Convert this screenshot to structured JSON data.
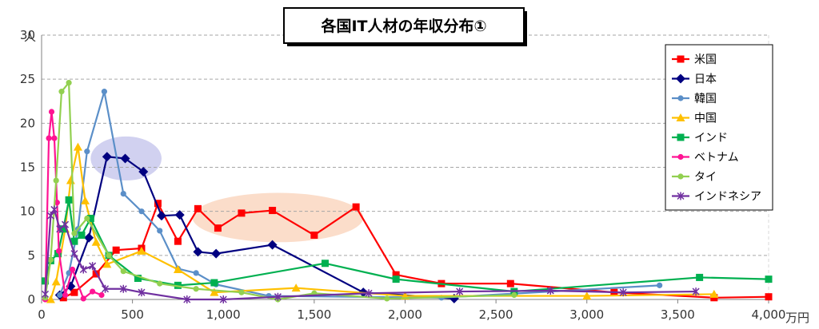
{
  "chart_data": {
    "type": "line",
    "title": "各国IT人材の年収分布①",
    "ylabel": "人",
    "xlabel": "万円",
    "xlim": [
      0,
      4000
    ],
    "ylim": [
      0,
      30
    ],
    "x_ticks": [
      "0",
      "500",
      "1,000",
      "1,500",
      "2,000",
      "2,500",
      "3,000",
      "3,500",
      "4,000"
    ],
    "y_ticks": [
      "0",
      "5",
      "10",
      "15",
      "20",
      "25",
      "30"
    ],
    "grid": "horizontal-dashed",
    "legend_position": "right",
    "series": [
      {
        "name": "米国",
        "color": "#ff0000",
        "marker": "square",
        "points": [
          [
            120,
            0.2
          ],
          [
            180,
            0.8
          ],
          [
            300,
            2.9
          ],
          [
            410,
            5.6
          ],
          [
            550,
            5.8
          ],
          [
            640,
            10.9
          ],
          [
            750,
            6.6
          ],
          [
            860,
            10.3
          ],
          [
            970,
            8.1
          ],
          [
            1100,
            9.8
          ],
          [
            1270,
            10.1
          ],
          [
            1500,
            7.3
          ],
          [
            1730,
            10.5
          ],
          [
            1950,
            2.8
          ],
          [
            2200,
            1.8
          ],
          [
            2580,
            1.8
          ],
          [
            3150,
            0.8
          ],
          [
            3700,
            0.2
          ],
          [
            4000,
            0.3
          ]
        ]
      },
      {
        "name": "日本",
        "color": "#000080",
        "marker": "diamond",
        "points": [
          [
            100,
            0.5
          ],
          [
            160,
            1.5
          ],
          [
            260,
            7.0
          ],
          [
            360,
            16.2
          ],
          [
            460,
            16.0
          ],
          [
            560,
            14.5
          ],
          [
            660,
            9.5
          ],
          [
            760,
            9.6
          ],
          [
            860,
            5.4
          ],
          [
            960,
            5.2
          ],
          [
            1270,
            6.2
          ],
          [
            1770,
            0.8
          ],
          [
            2270,
            0.1
          ]
        ]
      },
      {
        "name": "韓国",
        "color": "#5b8fc8",
        "marker": "circle",
        "points": [
          [
            100,
            0.5
          ],
          [
            150,
            3.0
          ],
          [
            200,
            8.0
          ],
          [
            250,
            16.8
          ],
          [
            345,
            23.6
          ],
          [
            450,
            12.0
          ],
          [
            550,
            10.0
          ],
          [
            650,
            7.8
          ],
          [
            750,
            3.5
          ],
          [
            850,
            3.0
          ],
          [
            960,
            1.7
          ],
          [
            1250,
            0.4
          ],
          [
            2200,
            0.2
          ],
          [
            3400,
            1.6
          ]
        ]
      },
      {
        "name": "中国",
        "color": "#ffc000",
        "marker": "triangle",
        "points": [
          [
            50,
            0.0
          ],
          [
            80,
            2.0
          ],
          [
            130,
            8.0
          ],
          [
            160,
            13.5
          ],
          [
            200,
            17.3
          ],
          [
            240,
            11.2
          ],
          [
            300,
            6.5
          ],
          [
            360,
            4.0
          ],
          [
            550,
            5.5
          ],
          [
            750,
            3.4
          ],
          [
            950,
            0.8
          ],
          [
            1400,
            1.3
          ],
          [
            2000,
            0.4
          ],
          [
            3000,
            0.4
          ],
          [
            3700,
            0.6
          ]
        ]
      },
      {
        "name": "インド",
        "color": "#00b050",
        "marker": "square",
        "points": [
          [
            20,
            2.1
          ],
          [
            50,
            4.4
          ],
          [
            90,
            5.2
          ],
          [
            120,
            8.0
          ],
          [
            150,
            11.3
          ],
          [
            180,
            6.6
          ],
          [
            220,
            7.3
          ],
          [
            270,
            9.2
          ],
          [
            370,
            5.0
          ],
          [
            530,
            2.4
          ],
          [
            750,
            1.6
          ],
          [
            950,
            1.9
          ],
          [
            1560,
            4.1
          ],
          [
            1950,
            2.3
          ],
          [
            2600,
            0.9
          ],
          [
            3620,
            2.5
          ],
          [
            4000,
            2.3
          ]
        ]
      },
      {
        "name": "ベトナム",
        "color": "#ff1493",
        "marker": "circle",
        "points": [
          [
            20,
            0.0
          ],
          [
            40,
            18.3
          ],
          [
            55,
            21.3
          ],
          [
            70,
            18.3
          ],
          [
            85,
            11.0
          ],
          [
            95,
            5.5
          ],
          [
            130,
            0.5
          ],
          [
            170,
            3.4
          ],
          [
            230,
            0.1
          ],
          [
            280,
            0.9
          ],
          [
            330,
            0.5
          ]
        ]
      },
      {
        "name": "タイ",
        "color": "#92d050",
        "marker": "circle",
        "points": [
          [
            20,
            0.2
          ],
          [
            50,
            4.5
          ],
          [
            80,
            13.5
          ],
          [
            110,
            23.6
          ],
          [
            150,
            24.6
          ],
          [
            180,
            7.5
          ],
          [
            250,
            9.2
          ],
          [
            370,
            5.0
          ],
          [
            450,
            3.2
          ],
          [
            650,
            1.8
          ],
          [
            850,
            1.2
          ],
          [
            1100,
            0.8
          ],
          [
            1300,
            0.0
          ],
          [
            1500,
            0.7
          ],
          [
            1900,
            0.1
          ],
          [
            2600,
            0.5
          ]
        ]
      },
      {
        "name": "インドネシア",
        "color": "#7030a0",
        "marker": "star",
        "points": [
          [
            20,
            0.6
          ],
          [
            50,
            9.5
          ],
          [
            70,
            10.2
          ],
          [
            100,
            8.0
          ],
          [
            130,
            8.5
          ],
          [
            180,
            5.2
          ],
          [
            230,
            3.4
          ],
          [
            280,
            3.8
          ],
          [
            350,
            1.2
          ],
          [
            450,
            1.2
          ],
          [
            550,
            0.8
          ],
          [
            800,
            0.0
          ],
          [
            1000,
            0.0
          ],
          [
            1300,
            0.3
          ],
          [
            1800,
            0.7
          ],
          [
            2300,
            0.9
          ],
          [
            2800,
            1.0
          ],
          [
            3200,
            0.8
          ],
          [
            3600,
            0.9
          ]
        ]
      }
    ],
    "highlights": [
      {
        "color": "#9999dd",
        "opacity": 0.45,
        "cx": 465,
        "cy": 16.0,
        "rx": 195,
        "ry": 2.5
      },
      {
        "color": "#f6b48a",
        "opacity": 0.45,
        "cx": 1300,
        "cy": 9.3,
        "rx": 470,
        "ry": 2.8
      }
    ]
  }
}
